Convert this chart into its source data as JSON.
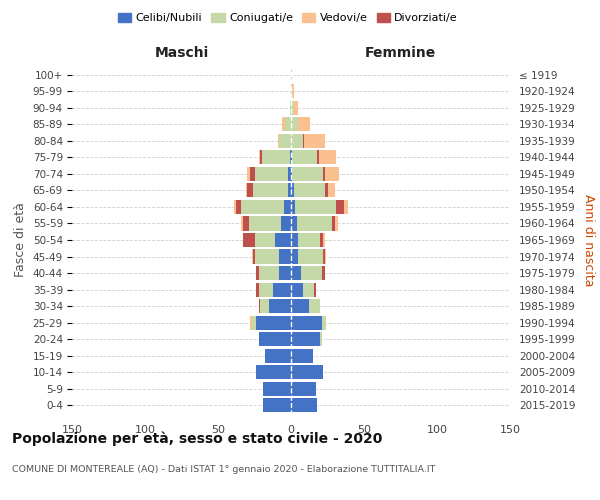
{
  "age_groups": [
    "0-4",
    "5-9",
    "10-14",
    "15-19",
    "20-24",
    "25-29",
    "30-34",
    "35-39",
    "40-44",
    "45-49",
    "50-54",
    "55-59",
    "60-64",
    "65-69",
    "70-74",
    "75-79",
    "80-84",
    "85-89",
    "90-94",
    "95-99",
    "100+"
  ],
  "birth_years": [
    "2015-2019",
    "2010-2014",
    "2005-2009",
    "2000-2004",
    "1995-1999",
    "1990-1994",
    "1985-1989",
    "1980-1984",
    "1975-1979",
    "1970-1974",
    "1965-1969",
    "1960-1964",
    "1955-1959",
    "1950-1954",
    "1945-1949",
    "1940-1944",
    "1935-1939",
    "1930-1934",
    "1925-1929",
    "1920-1924",
    "≤ 1919"
  ],
  "male": {
    "celibi": [
      19,
      19,
      24,
      18,
      22,
      24,
      15,
      12,
      8,
      8,
      11,
      7,
      5,
      2,
      2,
      1,
      0,
      0,
      0,
      0,
      0
    ],
    "coniugati": [
      0,
      0,
      0,
      0,
      0,
      3,
      6,
      10,
      14,
      17,
      14,
      22,
      29,
      24,
      23,
      19,
      8,
      4,
      1,
      0,
      0
    ],
    "vedovi": [
      0,
      0,
      0,
      0,
      0,
      1,
      0,
      0,
      0,
      1,
      0,
      1,
      1,
      1,
      2,
      1,
      1,
      2,
      0,
      0,
      0
    ],
    "divorziati": [
      0,
      0,
      0,
      0,
      0,
      0,
      1,
      2,
      2,
      1,
      8,
      4,
      4,
      4,
      3,
      1,
      0,
      0,
      0,
      0,
      0
    ]
  },
  "female": {
    "nubili": [
      18,
      17,
      22,
      15,
      20,
      21,
      12,
      8,
      7,
      5,
      5,
      4,
      3,
      2,
      1,
      1,
      0,
      0,
      0,
      0,
      0
    ],
    "coniugate": [
      0,
      0,
      0,
      0,
      1,
      3,
      8,
      8,
      14,
      17,
      15,
      24,
      28,
      21,
      21,
      17,
      8,
      5,
      2,
      1,
      0
    ],
    "vedove": [
      0,
      0,
      0,
      0,
      0,
      0,
      0,
      0,
      0,
      1,
      1,
      2,
      3,
      5,
      10,
      12,
      14,
      8,
      3,
      1,
      1
    ],
    "divorziate": [
      0,
      0,
      0,
      0,
      0,
      0,
      0,
      1,
      2,
      1,
      2,
      2,
      5,
      2,
      1,
      1,
      1,
      0,
      0,
      0,
      0
    ]
  },
  "colors": {
    "celibi": "#4472C4",
    "coniugati": "#C5D9A8",
    "vedovi": "#FAC090",
    "divorziati": "#C0504D"
  },
  "xlim": 150,
  "title": "Popolazione per età, sesso e stato civile - 2020",
  "subtitle": "COMUNE DI MONTEREALE (AQ) - Dati ISTAT 1° gennaio 2020 - Elaborazione TUTTITALIA.IT",
  "ylabel_left": "Fasce di età",
  "ylabel_right": "Anni di nascita",
  "xlabel_left": "Maschi",
  "xlabel_right": "Femmine",
  "bg_color": "#ffffff",
  "grid_color": "#d0d0d0",
  "bar_height": 0.85
}
